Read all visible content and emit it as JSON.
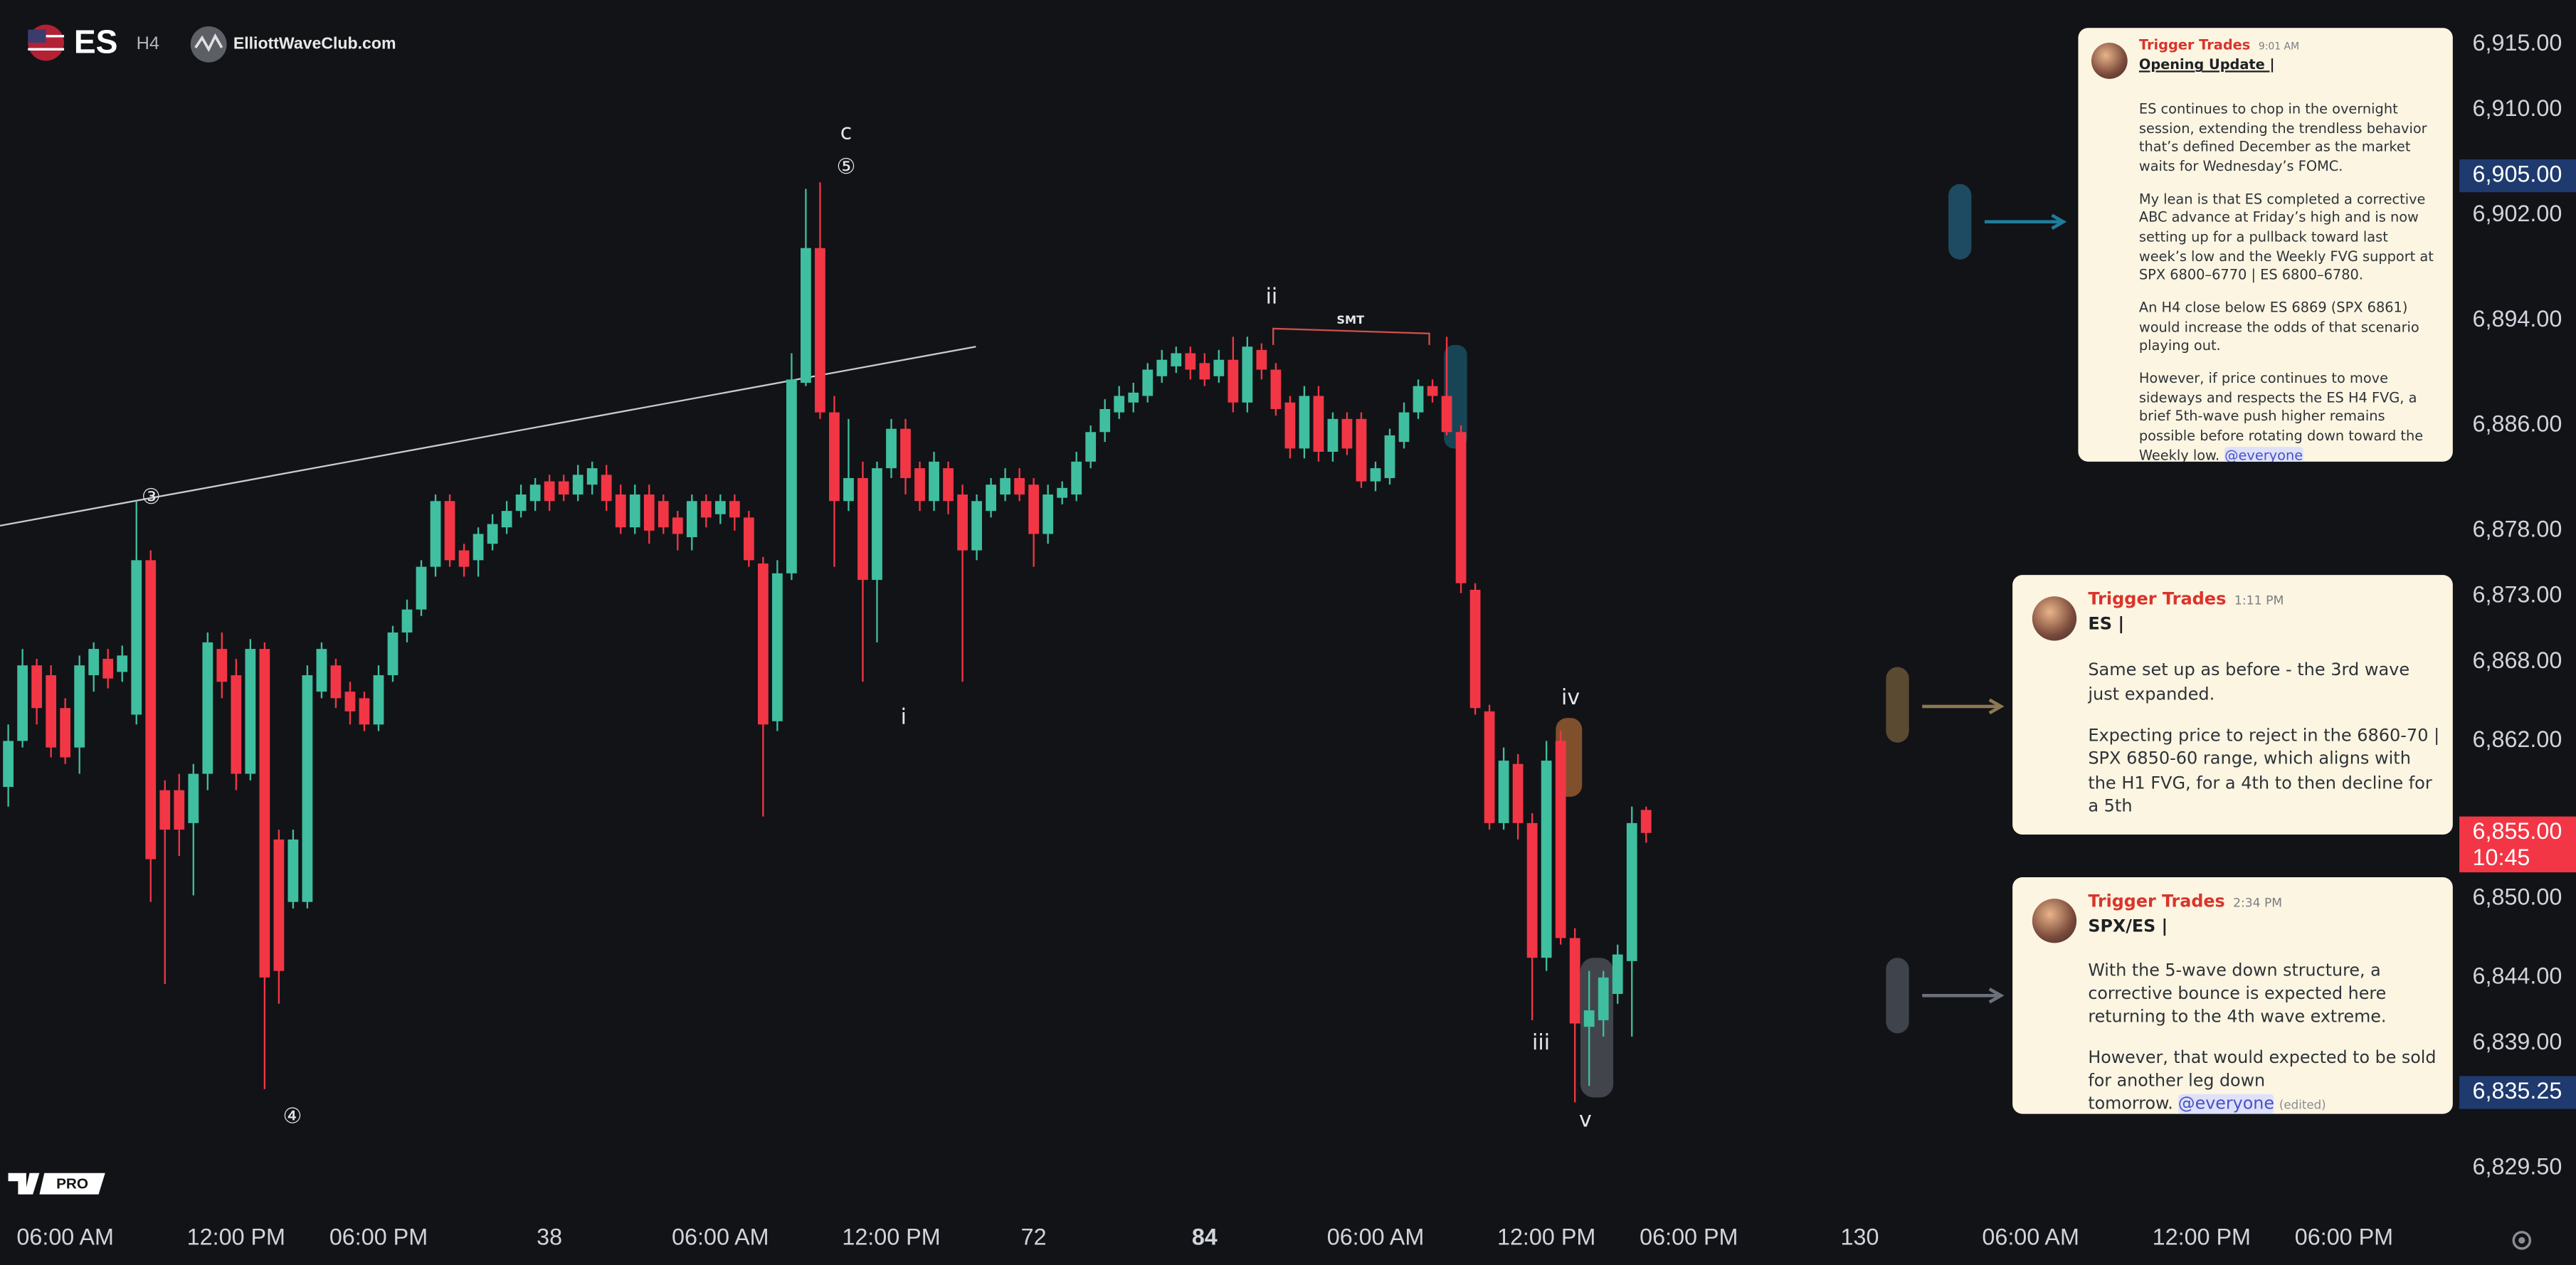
{
  "header": {
    "symbol": "ES",
    "interval": "H4",
    "brand": "ElliottWaveClub.com"
  },
  "badge": "PRO",
  "chart_data": {
    "type": "candlestick",
    "up_color": "#3fbf9f",
    "down_color": "#f23645",
    "xlim": [
      -0.58,
      172.1
    ],
    "xticks": [
      {
        "value": 4,
        "label": "06:00 AM"
      },
      {
        "value": 16,
        "label": "12:00 PM"
      },
      {
        "value": 26,
        "label": "06:00 PM"
      },
      38,
      {
        "value": 50,
        "label": "06:00 AM"
      },
      {
        "value": 62,
        "label": "12:00 PM"
      },
      72,
      84,
      {
        "value": 96,
        "label": "06:00 AM"
      },
      {
        "value": 108,
        "label": "12:00 PM"
      },
      {
        "value": 118,
        "label": "06:00 PM"
      },
      130,
      {
        "value": 142,
        "label": "06:00 AM"
      },
      {
        "value": 154,
        "label": "12:00 PM"
      },
      {
        "value": 164,
        "label": "06:00 PM"
      }
    ],
    "ylim": [
      6825.875,
      6918.375
    ],
    "yticks": [
      {
        "value": 6915,
        "label": "6,915.00"
      },
      {
        "value": 6910,
        "label": "6,910.00"
      },
      {
        "value": 6902,
        "label": "6,902.00"
      },
      {
        "value": 6894,
        "label": "6,894.00"
      },
      {
        "value": 6886,
        "label": "6,886.00"
      },
      {
        "value": 6878,
        "label": "6,878.00"
      },
      {
        "value": 6873,
        "label": "6,873.00"
      },
      {
        "value": 6868,
        "label": "6,868.00"
      },
      {
        "value": 6862,
        "label": "6,862.00"
      },
      {
        "value": 6850,
        "label": "6,850.00"
      },
      {
        "value": 6844,
        "label": "6,844.00"
      },
      {
        "value": 6839,
        "label": "6,839.00"
      },
      {
        "value": 6829.5,
        "label": "6,829.50"
      }
    ],
    "price_tags": [
      {
        "value": 6905,
        "label": "6,905.00",
        "color": "#1e3a6e"
      },
      {
        "value": 6855,
        "label": "6,855.00",
        "color": "#f23645",
        "countdown": "10:45"
      },
      {
        "value": 6835.25,
        "label": "6,835.25",
        "color": "#1e3a6e"
      }
    ],
    "annotations": [
      "c",
      "⑤",
      "ii",
      "SMT",
      "③",
      "i",
      "iv",
      "iii",
      "④",
      "v"
    ],
    "ohlc": [
      [
        6858.5,
        6863.25,
        6857,
        6862
      ],
      [
        6862,
        6869,
        6861.5,
        6867.75
      ],
      [
        6867.75,
        6868.25,
        6863.25,
        6864.5
      ],
      [
        6867,
        6867.75,
        6860.75,
        6861.5
      ],
      [
        6864.5,
        6865.25,
        6860.25,
        6860.75
      ],
      [
        6861.5,
        6868.5,
        6859.5,
        6867.75
      ],
      [
        6867,
        6869.5,
        6865.75,
        6869
      ],
      [
        6868.25,
        6869,
        6866,
        6866.75
      ],
      [
        6867.25,
        6869.25,
        6866.5,
        6868.5
      ],
      [
        6864,
        6880.25,
        6863.25,
        6875.75
      ],
      [
        6875.75,
        6876.5,
        6849.75,
        6853
      ],
      [
        6858.25,
        6859,
        6843.5,
        6855.25
      ],
      [
        6858.25,
        6859.5,
        6853.25,
        6855.25
      ],
      [
        6855.75,
        6860.25,
        6850.25,
        6859.5
      ],
      [
        6859.5,
        6870.25,
        6858.25,
        6869.5
      ],
      [
        6869,
        6870.25,
        6865.25,
        6866.5
      ],
      [
        6867,
        6868.25,
        6858.25,
        6859.5
      ],
      [
        6859.5,
        6869.75,
        6859,
        6869
      ],
      [
        6869,
        6869.5,
        6835.5,
        6844
      ],
      [
        6854.5,
        6855.25,
        6842,
        6844.5
      ],
      [
        6849.75,
        6855.25,
        6849.25,
        6854.5
      ],
      [
        6849.75,
        6867.75,
        6849.25,
        6867
      ],
      [
        6865.75,
        6869.5,
        6865.25,
        6869
      ],
      [
        6867.75,
        6868.25,
        6864.5,
        6865.25
      ],
      [
        6865.75,
        6866.5,
        6863.25,
        6864.25
      ],
      [
        6865.25,
        6865.75,
        6862.75,
        6863.25
      ],
      [
        6863.25,
        6867.75,
        6862.75,
        6867
      ],
      [
        6867,
        6870.75,
        6866.5,
        6870.25
      ],
      [
        6870.25,
        6872.75,
        6869.5,
        6872
      ],
      [
        6872,
        6875.75,
        6871.5,
        6875.25
      ],
      [
        6875.25,
        6880.75,
        6874.5,
        6880.25
      ],
      [
        6880.25,
        6880.75,
        6875.25,
        6875.75
      ],
      [
        6876.5,
        6877,
        6874.5,
        6875.25
      ],
      [
        6875.75,
        6878.25,
        6874.5,
        6877.75
      ],
      [
        6877,
        6879.25,
        6876.5,
        6878.5
      ],
      [
        6878.25,
        6880.25,
        6877.75,
        6879.5
      ],
      [
        6879.5,
        6881.5,
        6879,
        6880.75
      ],
      [
        6880.25,
        6882,
        6879.5,
        6881.5
      ],
      [
        6881.75,
        6882.25,
        6879.5,
        6880.25
      ],
      [
        6881.75,
        6882.25,
        6880.25,
        6880.75
      ],
      [
        6880.75,
        6883,
        6880.25,
        6882.25
      ],
      [
        6881.5,
        6883.25,
        6880.75,
        6882.75
      ],
      [
        6882.25,
        6883,
        6879.5,
        6880.25
      ],
      [
        6880.75,
        6881.5,
        6877.75,
        6878.25
      ],
      [
        6878.25,
        6881.5,
        6877.75,
        6880.75
      ],
      [
        6880.75,
        6881.5,
        6877,
        6878
      ],
      [
        6880.25,
        6880.75,
        6877.75,
        6878.25
      ],
      [
        6879,
        6879.5,
        6876.5,
        6877.75
      ],
      [
        6877.5,
        6880.75,
        6876.5,
        6880.25
      ],
      [
        6880.25,
        6880.75,
        6878.25,
        6879
      ],
      [
        6879.25,
        6880.75,
        6878.5,
        6880.25
      ],
      [
        6880.25,
        6880.75,
        6878,
        6879
      ],
      [
        6879,
        6879.5,
        6875.25,
        6875.75
      ],
      [
        6875.5,
        6876,
        6856.25,
        6863.25
      ],
      [
        6863.5,
        6875.75,
        6862.75,
        6874.75
      ],
      [
        6874.75,
        6891.5,
        6874.25,
        6889.5
      ],
      [
        6889.25,
        6904,
        6889,
        6899.5
      ],
      [
        6899.5,
        6904.5,
        6886.5,
        6887
      ],
      [
        6887,
        6888.25,
        6875.25,
        6880.25
      ],
      [
        6880.25,
        6886.5,
        6879.5,
        6882
      ],
      [
        6882,
        6883.25,
        6866.5,
        6874.25
      ],
      [
        6874.25,
        6883.25,
        6869.5,
        6882.75
      ],
      [
        6882.75,
        6886.5,
        6882,
        6885.75
      ],
      [
        6885.75,
        6886.5,
        6880.75,
        6882
      ],
      [
        6882.75,
        6883.25,
        6879.5,
        6880.25
      ],
      [
        6880.25,
        6884,
        6879.5,
        6883.25
      ],
      [
        6882.75,
        6883.25,
        6879.25,
        6880.25
      ],
      [
        6880.75,
        6881.5,
        6866.5,
        6876.5
      ],
      [
        6876.5,
        6880.75,
        6875.75,
        6880.25
      ],
      [
        6879.5,
        6882,
        6879,
        6881.5
      ],
      [
        6880.75,
        6882.75,
        6880.25,
        6882
      ],
      [
        6882,
        6882.75,
        6880.25,
        6880.75
      ],
      [
        6881.5,
        6882,
        6875.25,
        6877.75
      ],
      [
        6877.75,
        6881.5,
        6877,
        6880.75
      ],
      [
        6880.5,
        6881.75,
        6880,
        6881.25
      ],
      [
        6880.75,
        6884,
        6880.25,
        6883.25
      ],
      [
        6883.25,
        6886,
        6882.75,
        6885.5
      ],
      [
        6885.5,
        6888,
        6884.75,
        6887.25
      ],
      [
        6887,
        6889,
        6886.5,
        6888.25
      ],
      [
        6887.75,
        6889.25,
        6887,
        6888.5
      ],
      [
        6888.25,
        6890.75,
        6887.75,
        6890.25
      ],
      [
        6889.75,
        6891.75,
        6889.25,
        6891
      ],
      [
        6890.5,
        6892,
        6890,
        6891.5
      ],
      [
        6891.5,
        6892,
        6889.5,
        6890.25
      ],
      [
        6890.75,
        6891.5,
        6889,
        6889.5
      ],
      [
        6889.75,
        6891.75,
        6889.25,
        6891
      ],
      [
        6891,
        6892.75,
        6887,
        6887.75
      ],
      [
        6887.75,
        6892.75,
        6887,
        6892
      ],
      [
        6891.75,
        6892.25,
        6889.5,
        6890.25
      ],
      [
        6890.25,
        6890.75,
        6886.75,
        6887.25
      ],
      [
        6887.75,
        6888.25,
        6883.5,
        6884.25
      ],
      [
        6884.25,
        6889,
        6883.5,
        6888.25
      ],
      [
        6888.25,
        6889,
        6883.25,
        6884
      ],
      [
        6884,
        6887,
        6883.25,
        6886.5
      ],
      [
        6886.5,
        6887,
        6883.75,
        6884.25
      ],
      [
        6886.5,
        6887,
        6881.25,
        6881.75
      ],
      [
        6881.75,
        6883.25,
        6881,
        6882.75
      ],
      [
        6882,
        6885.75,
        6881.5,
        6885.25
      ],
      [
        6884.75,
        6887.75,
        6884.25,
        6887
      ],
      [
        6887,
        6889.5,
        6886.5,
        6889
      ],
      [
        6889,
        6889.5,
        6887.75,
        6888.25
      ],
      [
        6888.25,
        6892.75,
        6885.25,
        6885.5
      ],
      [
        6885.5,
        6886,
        6873.25,
        6874
      ],
      [
        6873.5,
        6874,
        6864,
        6864.5
      ],
      [
        6864.25,
        6864.75,
        6855.25,
        6855.75
      ],
      [
        6855.75,
        6861.5,
        6855.25,
        6860.5
      ],
      [
        6860.25,
        6861,
        6854.5,
        6855.75
      ],
      [
        6855.75,
        6856.5,
        6840.75,
        6845.5
      ],
      [
        6845.5,
        6862,
        6844.5,
        6860.5
      ],
      [
        6862,
        6862.75,
        6846.5,
        6847
      ],
      [
        6847,
        6847.75,
        6834.5,
        6840.5
      ],
      [
        6840.25,
        6844.5,
        6835.75,
        6841.5
      ],
      [
        6840.75,
        6844.5,
        6839.5,
        6844
      ],
      [
        6842.75,
        6846.5,
        6842,
        6845.75
      ],
      [
        6845.25,
        6857,
        6839.5,
        6855.75
      ],
      [
        6856.75,
        6857,
        6854.25,
        6855
      ]
    ]
  },
  "messages": [
    {
      "author": "Trigger Trades",
      "time": "9:01 AM",
      "title": "Opening Update |",
      "paragraphs": [
        "ES continues to chop in the overnight session, extending the trendless behavior that’s defined December as the market waits for Wednesday’s FOMC.",
        "My lean is that ES completed a corrective ABC advance at Friday’s high and is now setting up for a pullback toward last week’s low and the Weekly FVG support at SPX 6800–6770 | ES 6800–6780.",
        "An H4 close below ES 6869 (SPX 6861) would increase the odds of that scenario playing out.",
        "However, if price continues to move sideways and respects the ES H4 FVG, a brief 5th-wave push higher remains possible before rotating down toward the Weekly low."
      ],
      "mention": "@everyone"
    },
    {
      "author": "Trigger Trades",
      "time": "1:11 PM",
      "title": "ES |",
      "paragraphs": [
        "Same set up as before - the 3rd wave just expanded.",
        "Expecting price to reject in the 6860-70 | SPX 6850-60 range, which aligns with the H1 FVG, for a 4th to then decline for a 5th"
      ]
    },
    {
      "author": "Trigger Trades",
      "time": "2:34 PM",
      "title": "SPX/ES |",
      "paragraphs": [
        "With the 5-wave down structure, a corrective bounce is expected here returning to the 4th wave extreme.",
        "However, that would expected to be sold for another leg down tomorrow."
      ],
      "mention": "@everyone",
      "edited": "(edited)"
    }
  ]
}
